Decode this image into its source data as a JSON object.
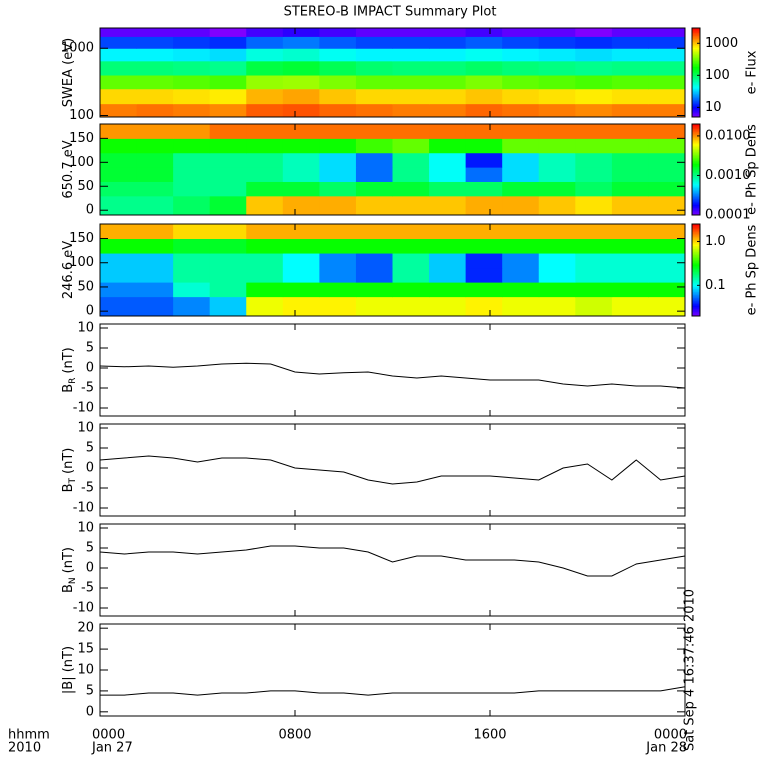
{
  "title": "STEREO-B IMPACT Summary Plot",
  "x_label_lines": [
    "hhmm",
    "2010"
  ],
  "timestamp": "Sat Sep  4 16:37:46 2010",
  "chart_data": [
    {
      "type": "heatmap",
      "ylabel": "SWEA (eV)",
      "log_y": true,
      "ylim": [
        95,
        2000
      ],
      "yticks": [
        100,
        1000
      ],
      "xlim": [
        0,
        24
      ],
      "xticks": [
        0,
        8,
        16,
        24
      ],
      "colormap": "rainbow",
      "x_bins": [
        0,
        1.5,
        3,
        4.5,
        6,
        7.5,
        9,
        10.5,
        12,
        13.5,
        15,
        16.5,
        18,
        19.5,
        21,
        22.5,
        24
      ],
      "y_bins": [
        95,
        150,
        250,
        400,
        650,
        1000,
        1500,
        2000
      ],
      "values": [
        [
          1500,
          1600,
          1500,
          1400,
          1800,
          1900,
          1700,
          1600,
          1500,
          1500,
          1700,
          1600,
          1500,
          1400,
          1500,
          1500
        ],
        [
          900,
          900,
          850,
          800,
          1100,
          1200,
          1000,
          900,
          900,
          900,
          1000,
          900,
          850,
          800,
          850,
          850
        ],
        [
          300,
          300,
          280,
          260,
          400,
          420,
          350,
          300,
          300,
          300,
          350,
          300,
          280,
          260,
          280,
          280
        ],
        [
          90,
          90,
          85,
          80,
          120,
          130,
          110,
          95,
          90,
          90,
          100,
          90,
          85,
          80,
          85,
          85
        ],
        [
          40,
          40,
          38,
          35,
          50,
          55,
          45,
          40,
          40,
          40,
          45,
          40,
          38,
          35,
          38,
          38
        ],
        [
          15,
          15,
          14,
          13,
          18,
          20,
          17,
          15,
          15,
          15,
          17,
          15,
          14,
          13,
          14,
          14
        ],
        [
          6,
          6,
          6,
          5,
          7,
          8,
          7,
          6,
          6,
          6,
          7,
          6,
          6,
          5,
          6,
          6
        ]
      ],
      "colorbar": {
        "label": "e- Flux",
        "lim": [
          5,
          3000
        ],
        "ticks": [
          10,
          100,
          1000
        ]
      }
    },
    {
      "type": "heatmap",
      "ylabel": "650.7 eV",
      "log_y": false,
      "ylim": [
        -10,
        180
      ],
      "yticks": [
        0,
        50,
        100,
        150
      ],
      "xlim": [
        0,
        24
      ],
      "xticks": [
        0,
        8,
        16,
        24
      ],
      "colormap": "rainbow",
      "x_bins": [
        0,
        1.5,
        3,
        4.5,
        6,
        7.5,
        9,
        10.5,
        12,
        13.5,
        15,
        16.5,
        18,
        19.5,
        21,
        22.5,
        24
      ],
      "y_bins": [
        -10,
        30,
        60,
        90,
        120,
        150,
        180
      ],
      "values": [
        [
          0.001,
          0.001,
          0.0012,
          0.0015,
          0.008,
          0.009,
          0.009,
          0.008,
          0.008,
          0.008,
          0.009,
          0.009,
          0.008,
          0.007,
          0.008,
          0.008
        ],
        [
          0.0012,
          0.0012,
          0.001,
          0.001,
          0.0015,
          0.0015,
          0.0012,
          0.0015,
          0.0015,
          0.0012,
          0.0012,
          0.0015,
          0.0015,
          0.0012,
          0.0015,
          0.0015
        ],
        [
          0.0015,
          0.0015,
          0.001,
          0.001,
          0.001,
          0.0008,
          0.0005,
          0.0003,
          0.001,
          0.0006,
          0.0003,
          0.0005,
          0.0008,
          0.001,
          0.0012,
          0.0012
        ],
        [
          0.0015,
          0.0015,
          0.001,
          0.001,
          0.001,
          0.0008,
          0.0005,
          0.0003,
          0.001,
          0.0006,
          0.0002,
          0.0005,
          0.0008,
          0.001,
          0.0012,
          0.0012
        ],
        [
          0.002,
          0.002,
          0.002,
          0.002,
          0.002,
          0.002,
          0.002,
          0.0025,
          0.003,
          0.002,
          0.002,
          0.003,
          0.003,
          0.003,
          0.003,
          0.003
        ],
        [
          0.01,
          0.01,
          0.01,
          0.012,
          0.012,
          0.012,
          0.012,
          0.012,
          0.012,
          0.012,
          0.012,
          0.012,
          0.012,
          0.012,
          0.012,
          0.012
        ]
      ],
      "colorbar": {
        "label": "e- Ph Sp Dens",
        "lim": [
          0.0001,
          0.02
        ],
        "ticks": [
          {
            "value": 0.0001,
            "label": "0.0001"
          },
          {
            "value": 0.001,
            "label": "0.0010"
          },
          {
            "value": 0.01,
            "label": "0.0100"
          }
        ]
      }
    },
    {
      "type": "heatmap",
      "ylabel": "246.6 eV",
      "log_y": false,
      "ylim": [
        -10,
        180
      ],
      "yticks": [
        0,
        50,
        100,
        150
      ],
      "xlim": [
        0,
        24
      ],
      "xticks": [
        0,
        8,
        16,
        24
      ],
      "colormap": "rainbow",
      "x_bins": [
        0,
        1.5,
        3,
        4.5,
        6,
        7.5,
        9,
        10.5,
        12,
        13.5,
        15,
        16.5,
        18,
        19.5,
        21,
        22.5,
        24
      ],
      "y_bins": [
        -10,
        30,
        60,
        90,
        120,
        150,
        180
      ],
      "values": [
        [
          0.05,
          0.05,
          0.06,
          0.08,
          0.8,
          0.9,
          0.9,
          0.8,
          0.8,
          0.8,
          0.9,
          0.8,
          0.8,
          0.7,
          0.8,
          0.8
        ],
        [
          0.06,
          0.06,
          0.12,
          0.15,
          0.3,
          0.3,
          0.3,
          0.3,
          0.3,
          0.3,
          0.3,
          0.3,
          0.3,
          0.3,
          0.3,
          0.3
        ],
        [
          0.08,
          0.08,
          0.15,
          0.15,
          0.15,
          0.1,
          0.06,
          0.05,
          0.15,
          0.08,
          0.04,
          0.06,
          0.1,
          0.12,
          0.12,
          0.12
        ],
        [
          0.08,
          0.08,
          0.15,
          0.15,
          0.15,
          0.1,
          0.06,
          0.05,
          0.15,
          0.08,
          0.04,
          0.06,
          0.1,
          0.12,
          0.12,
          0.12
        ],
        [
          0.3,
          0.3,
          0.25,
          0.25,
          0.3,
          0.3,
          0.3,
          0.3,
          0.3,
          0.3,
          0.3,
          0.3,
          0.3,
          0.3,
          0.3,
          0.3
        ],
        [
          1.2,
          1.2,
          1.0,
          1.0,
          1.2,
          1.2,
          1.2,
          1.2,
          1.2,
          1.2,
          1.2,
          1.2,
          1.2,
          1.2,
          1.2,
          1.2
        ]
      ],
      "colorbar": {
        "label": "e- Ph Sp Dens",
        "lim": [
          0.02,
          2.5
        ],
        "ticks": [
          0.1,
          {
            "value": 1,
            "label": "1.0"
          }
        ]
      }
    },
    {
      "type": "line",
      "ylabel": "B",
      "ylabel_sub": "R",
      "ylabel_unit": "(nT)",
      "ylim": [
        -12,
        11
      ],
      "yticks": [
        -10,
        -5,
        0,
        5,
        10
      ],
      "xlim": [
        0,
        24
      ],
      "xticks": [
        0,
        8,
        16,
        24
      ],
      "color": "#000000",
      "x": [
        0,
        1,
        2,
        3,
        4,
        5,
        6,
        7,
        8,
        9,
        10,
        11,
        12,
        13,
        14,
        15,
        16,
        17,
        18,
        19,
        20,
        21,
        22,
        23,
        24
      ],
      "values": [
        0.5,
        0.3,
        0.5,
        0.2,
        0.5,
        1,
        1.2,
        1,
        -1,
        -1.5,
        -1.2,
        -1,
        -2,
        -2.5,
        -2,
        -2.5,
        -3,
        -3,
        -3,
        -4,
        -4.5,
        -4,
        -4.5,
        -4.5,
        -5
      ]
    },
    {
      "type": "line",
      "ylabel": "B",
      "ylabel_sub": "T",
      "ylabel_unit": "(nT)",
      "ylim": [
        -12,
        11
      ],
      "yticks": [
        -10,
        -5,
        0,
        5,
        10
      ],
      "xlim": [
        0,
        24
      ],
      "xticks": [
        0,
        8,
        16,
        24
      ],
      "color": "#000000",
      "x": [
        0,
        1,
        2,
        3,
        4,
        5,
        6,
        7,
        8,
        9,
        10,
        11,
        12,
        13,
        14,
        15,
        16,
        17,
        18,
        19,
        20,
        21,
        22,
        23,
        24
      ],
      "values": [
        2,
        2.5,
        3,
        2.5,
        1.5,
        2.5,
        2.5,
        2,
        0,
        -0.5,
        -1,
        -3,
        -4,
        -3.5,
        -2,
        -2,
        -2,
        -2.5,
        -3,
        0,
        1,
        -3,
        2,
        -3,
        -2
      ]
    },
    {
      "type": "line",
      "ylabel": "B",
      "ylabel_sub": "N",
      "ylabel_unit": "(nT)",
      "ylim": [
        -12,
        11
      ],
      "yticks": [
        -10,
        -5,
        0,
        5,
        10
      ],
      "xlim": [
        0,
        24
      ],
      "xticks": [
        0,
        8,
        16,
        24
      ],
      "color": "#000000",
      "x": [
        0,
        1,
        2,
        3,
        4,
        5,
        6,
        7,
        8,
        9,
        10,
        11,
        12,
        13,
        14,
        15,
        16,
        17,
        18,
        19,
        20,
        21,
        22,
        23,
        24
      ],
      "values": [
        4,
        3.5,
        4,
        4,
        3.5,
        4,
        4.5,
        5.5,
        5.5,
        5,
        5,
        4,
        1.5,
        3,
        3,
        2,
        2,
        2,
        1.5,
        0,
        -2,
        -2,
        1,
        2,
        3
      ]
    },
    {
      "type": "line",
      "ylabel": "|B| (nT)",
      "ylim": [
        -1,
        21
      ],
      "yticks": [
        0,
        5,
        10,
        15,
        20
      ],
      "xlim": [
        0,
        24
      ],
      "color": "#000000",
      "xticks": [
        {
          "value": 0,
          "label": "0000",
          "sublabel": "Jan 27"
        },
        {
          "value": 8,
          "label": "0800"
        },
        {
          "value": 16,
          "label": "1600"
        },
        {
          "value": 24,
          "label": "0000",
          "sublabel": "Jan 28"
        }
      ],
      "x": [
        0,
        1,
        2,
        3,
        4,
        5,
        6,
        7,
        8,
        9,
        10,
        11,
        12,
        13,
        14,
        15,
        16,
        17,
        18,
        19,
        20,
        21,
        22,
        23,
        24
      ],
      "values": [
        4,
        4,
        4.5,
        4.5,
        4,
        4.5,
        4.5,
        5,
        5,
        4.5,
        4.5,
        4,
        4.5,
        4.5,
        4.5,
        4.5,
        4.5,
        4.5,
        5,
        5,
        5,
        5,
        5,
        5,
        6
      ]
    }
  ]
}
